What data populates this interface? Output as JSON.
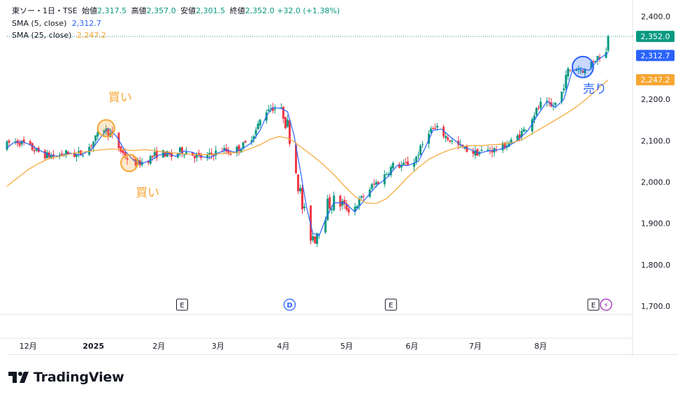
{
  "header": {
    "symbol": "東ソー・1日・TSE",
    "open_label": "始値",
    "open": "2,317.5",
    "high_label": "高値",
    "high": "2,357.0",
    "low_label": "安値",
    "low": "2,301.5",
    "close_label": "終値",
    "close": "2,352.0",
    "change": "+32.0 (+1.38%)"
  },
  "indicators": [
    {
      "label": "SMA (5, close)",
      "value": "2,312.7",
      "color": "#2962ff"
    },
    {
      "label": "SMA (25, close)",
      "value": "2,247.2",
      "color": "#f7a531"
    }
  ],
  "price_badges": [
    {
      "value": "2,352.0",
      "y": 2352.0,
      "color": "#089981"
    },
    {
      "value": "2,312.7",
      "y": 2312.7,
      "color": "#2962ff"
    },
    {
      "value": "2,247.2",
      "y": 2247.2,
      "color": "#f7a531"
    }
  ],
  "annotations": [
    {
      "text": "買い",
      "color": "#f7a531",
      "day": 48,
      "price": 2195
    },
    {
      "text": "買い",
      "color": "#f7a531",
      "day": 61,
      "price": 1965
    },
    {
      "text": "売り",
      "color": "#2962ff",
      "day": 273,
      "price": 2215
    }
  ],
  "circles": [
    {
      "day": 47,
      "price": 2130,
      "color": "#f7a531"
    },
    {
      "day": 58,
      "price": 2046,
      "color": "#f7a531"
    },
    {
      "day": 273,
      "price": 2278,
      "color": "#2962ff"
    }
  ],
  "events": [
    {
      "type": "E",
      "day": 83
    },
    {
      "type": "D",
      "day": 134
    },
    {
      "type": "E",
      "day": 182
    },
    {
      "type": "E",
      "day": 278
    },
    {
      "type": "⚡",
      "day": 284
    }
  ],
  "brand": "TradingView",
  "chart_data": {
    "type": "candlestick",
    "ylim": [
      1680,
      2440
    ],
    "yticks": [
      2400.0,
      2300.0,
      2200.0,
      2100.0,
      2000.0,
      1900.0,
      1800.0,
      1700.0
    ],
    "ytick_labels": [
      "2,400.0",
      "2,300.0",
      "2,200.0",
      "2,100.0",
      "2,000.0",
      "1,900.0",
      "1,800.0",
      "1,700.0"
    ],
    "x_start": "2024-11-21",
    "x_end": "2025-08-28",
    "xticks": [
      {
        "label": "12月",
        "date": "2024-12-01"
      },
      {
        "label": "2025",
        "date": "2025-01-01"
      },
      {
        "label": "2月",
        "date": "2025-02-01"
      },
      {
        "label": "3月",
        "date": "2025-03-01"
      },
      {
        "label": "4月",
        "date": "2025-04-01"
      },
      {
        "label": "5月",
        "date": "2025-05-01"
      },
      {
        "label": "6月",
        "date": "2025-06-01"
      },
      {
        "label": "7月",
        "date": "2025-07-01"
      },
      {
        "label": "8月",
        "date": "2025-08-01"
      }
    ],
    "up_color": "#089981",
    "down_color": "#f23645",
    "last_close": 2352.0,
    "series": [
      {
        "name": "SMA (5, close)",
        "color": "#2962ff",
        "points": [
          [
            0,
            2082
          ],
          [
            3,
            2095
          ],
          [
            7,
            2098
          ],
          [
            11,
            2090
          ],
          [
            15,
            2078
          ],
          [
            20,
            2065
          ],
          [
            25,
            2062
          ],
          [
            30,
            2070
          ],
          [
            35,
            2065
          ],
          [
            40,
            2078
          ],
          [
            45,
            2112
          ],
          [
            48,
            2130
          ],
          [
            52,
            2110
          ],
          [
            56,
            2075
          ],
          [
            60,
            2052
          ],
          [
            64,
            2045
          ],
          [
            68,
            2052
          ],
          [
            72,
            2065
          ],
          [
            76,
            2070
          ],
          [
            80,
            2062
          ],
          [
            84,
            2075
          ],
          [
            88,
            2072
          ],
          [
            92,
            2062
          ],
          [
            96,
            2058
          ],
          [
            100,
            2070
          ],
          [
            104,
            2078
          ],
          [
            108,
            2072
          ],
          [
            112,
            2082
          ],
          [
            116,
            2095
          ],
          [
            120,
            2125
          ],
          [
            123,
            2160
          ],
          [
            126,
            2180
          ],
          [
            130,
            2178
          ],
          [
            133,
            2170
          ],
          [
            136,
            2115
          ],
          [
            139,
            2030
          ],
          [
            142,
            1940
          ],
          [
            145,
            1876
          ],
          [
            148,
            1870
          ],
          [
            151,
            1910
          ],
          [
            155,
            1950
          ],
          [
            160,
            1950
          ],
          [
            165,
            1928
          ],
          [
            170,
            1960
          ],
          [
            175,
            1990
          ],
          [
            180,
            2010
          ],
          [
            185,
            2040
          ],
          [
            190,
            2040
          ],
          [
            195,
            2050
          ],
          [
            198,
            2080
          ],
          [
            202,
            2125
          ],
          [
            206,
            2128
          ],
          [
            210,
            2110
          ],
          [
            215,
            2090
          ],
          [
            219,
            2080
          ],
          [
            224,
            2070
          ],
          [
            228,
            2075
          ],
          [
            233,
            2078
          ],
          [
            237,
            2085
          ],
          [
            242,
            2100
          ],
          [
            247,
            2125
          ],
          [
            252,
            2165
          ],
          [
            256,
            2195
          ],
          [
            260,
            2180
          ],
          [
            264,
            2200
          ],
          [
            268,
            2270
          ],
          [
            272,
            2275
          ],
          [
            276,
            2270
          ],
          [
            280,
            2295
          ],
          [
            285,
            2312.7
          ]
        ]
      },
      {
        "name": "SMA (25, close)",
        "color": "#f7a531",
        "points": [
          [
            0,
            1990
          ],
          [
            5,
            2010
          ],
          [
            10,
            2030
          ],
          [
            15,
            2045
          ],
          [
            20,
            2057
          ],
          [
            25,
            2062
          ],
          [
            30,
            2068
          ],
          [
            35,
            2072
          ],
          [
            40,
            2075
          ],
          [
            45,
            2078
          ],
          [
            50,
            2080
          ],
          [
            55,
            2078
          ],
          [
            60,
            2076
          ],
          [
            65,
            2078
          ],
          [
            70,
            2076
          ],
          [
            75,
            2072
          ],
          [
            80,
            2070
          ],
          [
            85,
            2068
          ],
          [
            90,
            2066
          ],
          [
            95,
            2066
          ],
          [
            100,
            2068
          ],
          [
            105,
            2070
          ],
          [
            110,
            2072
          ],
          [
            115,
            2080
          ],
          [
            120,
            2090
          ],
          [
            125,
            2104
          ],
          [
            129,
            2110
          ],
          [
            133,
            2106
          ],
          [
            136,
            2098
          ],
          [
            140,
            2082
          ],
          [
            145,
            2063
          ],
          [
            150,
            2042
          ],
          [
            155,
            2018
          ],
          [
            160,
            1990
          ],
          [
            165,
            1965
          ],
          [
            170,
            1950
          ],
          [
            175,
            1948
          ],
          [
            180,
            1960
          ],
          [
            185,
            1985
          ],
          [
            190,
            2012
          ],
          [
            195,
            2035
          ],
          [
            200,
            2055
          ],
          [
            205,
            2068
          ],
          [
            210,
            2078
          ],
          [
            215,
            2085
          ],
          [
            220,
            2088
          ],
          [
            225,
            2088
          ],
          [
            230,
            2090
          ],
          [
            235,
            2092
          ],
          [
            240,
            2096
          ],
          [
            245,
            2105
          ],
          [
            250,
            2120
          ],
          [
            255,
            2135
          ],
          [
            260,
            2150
          ],
          [
            265,
            2165
          ],
          [
            270,
            2182
          ],
          [
            275,
            2202
          ],
          [
            280,
            2225
          ],
          [
            285,
            2247.2
          ]
        ]
      }
    ]
  }
}
